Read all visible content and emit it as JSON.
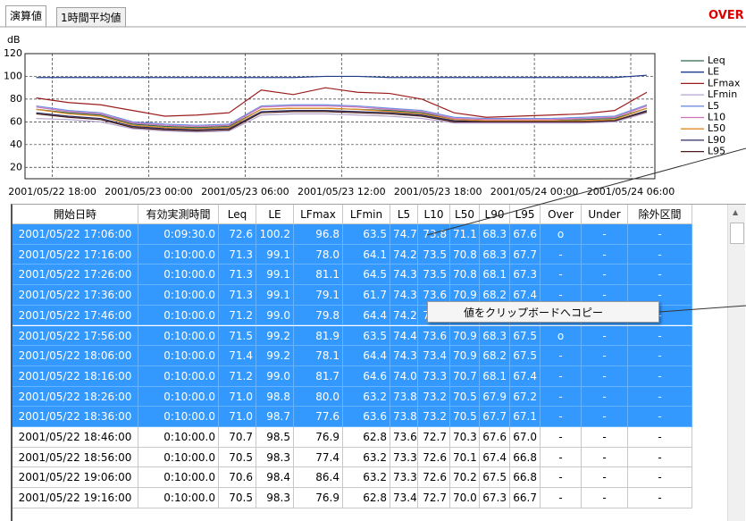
{
  "tabs": [
    "演算値",
    "1時間平均値"
  ],
  "status": "OVER",
  "chart_data": {
    "type": "line",
    "y_label": "dB",
    "xlim": [
      -1.7,
      37.5
    ],
    "xticks": [
      {
        "value": 0,
        "label": "2001/05/22 18:00"
      },
      {
        "value": 6,
        "label": "2001/05/23 00:00"
      },
      {
        "value": 12,
        "label": "2001/05/23 06:00"
      },
      {
        "value": 18,
        "label": "2001/05/23 12:00"
      },
      {
        "value": 24,
        "label": "2001/05/23 18:00"
      },
      {
        "value": 30,
        "label": "2001/05/24 00:00"
      },
      {
        "value": 36,
        "label": "2001/05/24 06:00"
      }
    ],
    "ylim": [
      10,
      120
    ],
    "yticks": [
      20,
      40,
      60,
      80,
      100,
      120
    ],
    "grid": true,
    "legend": "right",
    "x": [
      -1,
      1,
      3,
      5,
      7,
      9,
      11,
      13,
      15,
      17,
      19,
      21,
      23,
      25,
      27,
      29,
      31,
      33,
      35,
      37
    ],
    "series": [
      {
        "name": "Leq",
        "color": "#2e6b4a",
        "values": [
          71,
          68,
          66,
          58,
          56,
          55,
          56,
          71,
          72,
          72,
          71,
          70,
          68,
          62,
          61,
          61,
          61,
          62,
          63,
          72
        ]
      },
      {
        "name": "LE",
        "color": "#1f3a8a",
        "values": [
          99,
          99,
          99,
          99,
          99,
          99,
          99,
          99,
          99,
          100,
          100,
          99,
          99,
          99,
          99,
          99,
          99,
          99,
          99,
          101
        ]
      },
      {
        "name": "LFmax",
        "color": "#9b1c1c",
        "values": [
          81,
          77,
          75,
          70,
          65,
          66,
          68,
          88,
          84,
          90,
          86,
          85,
          80,
          68,
          64,
          65,
          66,
          67,
          70,
          86
        ]
      },
      {
        "name": "LFmin",
        "color": "#b4a4cc",
        "values": [
          63,
          62,
          60,
          54,
          52,
          51,
          52,
          66,
          67,
          67,
          66,
          65,
          63,
          59,
          59,
          59,
          59,
          59,
          60,
          68
        ]
      },
      {
        "name": "L5",
        "color": "#6f8fe0",
        "values": [
          74,
          70,
          68,
          60,
          58,
          57,
          58,
          74,
          75,
          75,
          74,
          72,
          70,
          64,
          63,
          63,
          63,
          64,
          65,
          75
        ]
      },
      {
        "name": "L10",
        "color": "#d070b8",
        "values": [
          73,
          69,
          67,
          59,
          57,
          56,
          57,
          73,
          74,
          74,
          73,
          71,
          69,
          63,
          62,
          62,
          62,
          63,
          64,
          74
        ]
      },
      {
        "name": "L50",
        "color": "#e08a20",
        "values": [
          71,
          67,
          65,
          57,
          55,
          54,
          55,
          71,
          72,
          72,
          71,
          69,
          67,
          62,
          61,
          61,
          61,
          61,
          62,
          72
        ]
      },
      {
        "name": "L90",
        "color": "#2a2e5e",
        "values": [
          68,
          65,
          63,
          56,
          54,
          53,
          54,
          69,
          70,
          70,
          69,
          68,
          66,
          61,
          60,
          60,
          60,
          60,
          61,
          70
        ]
      },
      {
        "name": "L95",
        "color": "#4a1c1c",
        "values": [
          67,
          64,
          62,
          55,
          53,
          52,
          53,
          68,
          69,
          69,
          68,
          67,
          65,
          60,
          60,
          60,
          60,
          60,
          61,
          69
        ]
      }
    ]
  },
  "table": {
    "columns": [
      "開始日時",
      "有効実測時間",
      "Leq",
      "LE",
      "LFmax",
      "LFmin",
      "L5",
      "L10",
      "L50",
      "L90",
      "L95",
      "Over",
      "Under",
      "除外区間"
    ],
    "rows": [
      {
        "selected": true,
        "cells": [
          "2001/05/22 17:06:00",
          "0:09:30.0",
          "72.6",
          "100.2",
          "96.8",
          "63.5",
          "74.7",
          "73.8",
          "71.1",
          "68.3",
          "67.6",
          "o",
          "-",
          "-"
        ]
      },
      {
        "selected": true,
        "cells": [
          "2001/05/22 17:16:00",
          "0:10:00.0",
          "71.3",
          "99.1",
          "78.0",
          "64.1",
          "74.2",
          "73.5",
          "70.8",
          "68.3",
          "67.7",
          "-",
          "-",
          "-"
        ]
      },
      {
        "selected": true,
        "cells": [
          "2001/05/22 17:26:00",
          "0:10:00.0",
          "71.3",
          "99.1",
          "81.1",
          "64.5",
          "74.3",
          "73.5",
          "70.8",
          "68.1",
          "67.3",
          "-",
          "-",
          "-"
        ]
      },
      {
        "selected": true,
        "cells": [
          "2001/05/22 17:36:00",
          "0:10:00.0",
          "71.3",
          "99.1",
          "79.1",
          "61.7",
          "74.3",
          "73.6",
          "70.9",
          "68.2",
          "67.4",
          "-",
          "-",
          "-"
        ]
      },
      {
        "selected": true,
        "cells": [
          "2001/05/22 17:46:00",
          "0:10:00.0",
          "71.2",
          "99.0",
          "79.8",
          "64.4",
          "74.2",
          "73.4",
          "70.7",
          "68.1",
          "67.4",
          "-",
          "-",
          "-"
        ]
      },
      {
        "selected": true,
        "cells": [
          "2001/05/22 17:56:00",
          "0:10:00.0",
          "71.5",
          "99.2",
          "81.9",
          "63.5",
          "74.4",
          "73.6",
          "70.9",
          "68.3",
          "67.5",
          "o",
          "-",
          "-"
        ]
      },
      {
        "selected": true,
        "cells": [
          "2001/05/22 18:06:00",
          "0:10:00.0",
          "71.4",
          "99.2",
          "78.1",
          "64.4",
          "74.3",
          "73.4",
          "70.9",
          "68.2",
          "67.5",
          "-",
          "-",
          "-"
        ]
      },
      {
        "selected": true,
        "cells": [
          "2001/05/22 18:16:00",
          "0:10:00.0",
          "71.2",
          "99.0",
          "81.7",
          "64.6",
          "74.0",
          "73.3",
          "70.7",
          "68.1",
          "67.4",
          "-",
          "-",
          "-"
        ]
      },
      {
        "selected": true,
        "cells": [
          "2001/05/22 18:26:00",
          "0:10:00.0",
          "71.0",
          "98.8",
          "80.0",
          "63.2",
          "73.8",
          "73.2",
          "70.5",
          "67.9",
          "67.2",
          "-",
          "-",
          "-"
        ]
      },
      {
        "selected": true,
        "cells": [
          "2001/05/22 18:36:00",
          "0:10:00.0",
          "71.0",
          "98.7",
          "77.6",
          "63.6",
          "73.8",
          "73.2",
          "70.5",
          "67.7",
          "67.1",
          "-",
          "-",
          "-"
        ]
      },
      {
        "selected": false,
        "cells": [
          "2001/05/22 18:46:00",
          "0:10:00.0",
          "70.7",
          "98.5",
          "76.9",
          "62.8",
          "73.6",
          "72.7",
          "70.3",
          "67.6",
          "67.0",
          "-",
          "-",
          "-"
        ]
      },
      {
        "selected": false,
        "cells": [
          "2001/05/22 18:56:00",
          "0:10:00.0",
          "70.5",
          "98.3",
          "77.4",
          "63.2",
          "73.3",
          "72.6",
          "70.1",
          "67.4",
          "66.8",
          "-",
          "-",
          "-"
        ]
      },
      {
        "selected": false,
        "cells": [
          "2001/05/22 19:06:00",
          "0:10:00.0",
          "70.6",
          "98.4",
          "86.4",
          "63.2",
          "73.3",
          "72.6",
          "70.2",
          "67.5",
          "66.8",
          "-",
          "-",
          "-"
        ]
      },
      {
        "selected": false,
        "cells": [
          "2001/05/22 19:16:00",
          "0:10:00.0",
          "70.5",
          "98.3",
          "76.9",
          "62.8",
          "73.4",
          "72.7",
          "70.0",
          "67.3",
          "66.7",
          "-",
          "-",
          "-"
        ]
      }
    ]
  },
  "context_menu": {
    "items": [
      "値をクリップボードへコピー"
    ]
  }
}
